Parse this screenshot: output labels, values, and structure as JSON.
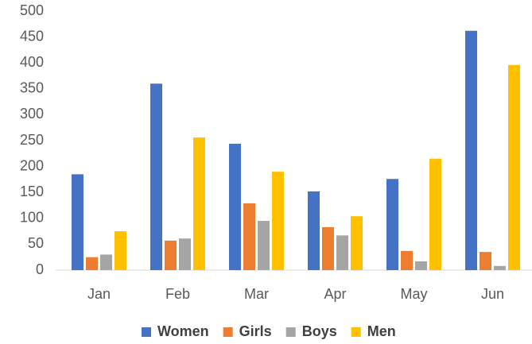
{
  "chart_data": {
    "type": "bar",
    "categories": [
      "Jan",
      "Feb",
      "Mar",
      "Apr",
      "May",
      "Jun"
    ],
    "series": [
      {
        "name": "Women",
        "color": "#4472c4",
        "values": [
          185,
          360,
          244,
          152,
          176,
          462
        ]
      },
      {
        "name": "Girls",
        "color": "#ed7d31",
        "values": [
          25,
          57,
          129,
          83,
          37,
          35
        ]
      },
      {
        "name": "Boys",
        "color": "#a5a5a5",
        "values": [
          30,
          61,
          95,
          67,
          17,
          8
        ]
      },
      {
        "name": "Men",
        "color": "#ffc000",
        "values": [
          75,
          256,
          190,
          104,
          215,
          396
        ]
      }
    ],
    "ylim": [
      0,
      500
    ],
    "yticks": [
      0,
      50,
      100,
      150,
      200,
      250,
      300,
      350,
      400,
      450,
      500
    ],
    "grid": false,
    "legend": "bottom"
  }
}
